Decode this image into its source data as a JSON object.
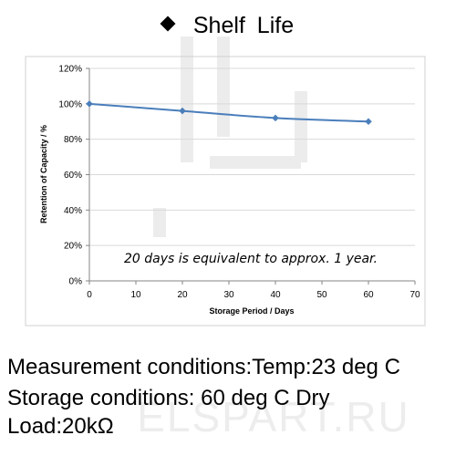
{
  "title": "Shelf Life",
  "watermark": "ELSPART.RU",
  "note": "20 days is equivalent to approx. 1 year.",
  "conditions": {
    "measurement": "Measurement conditions:Temp:23 deg C",
    "storage": "Storage conditions: 60 deg C Dry",
    "load": "Load:20kΩ"
  },
  "colors": {
    "series": "#4a7ebb",
    "grid": "#d9d9d9",
    "axis": "#868686"
  },
  "chart_data": {
    "type": "line",
    "xlabel": "Storage Period / Days",
    "ylabel": "Retention of Capacity / %",
    "xlim": [
      0,
      70
    ],
    "ylim": [
      0,
      120
    ],
    "x_ticks": [
      0,
      10,
      20,
      30,
      40,
      50,
      60,
      70
    ],
    "y_ticks": [
      0,
      20,
      40,
      60,
      80,
      100,
      120
    ],
    "y_tick_labels": [
      "0%",
      "20%",
      "40%",
      "60%",
      "80%",
      "100%",
      "120%"
    ],
    "grid": "horizontal",
    "series": [
      {
        "x": [
          0,
          20,
          40,
          60
        ],
        "y": [
          100,
          96,
          92,
          90
        ],
        "marker": "diamond"
      }
    ]
  }
}
